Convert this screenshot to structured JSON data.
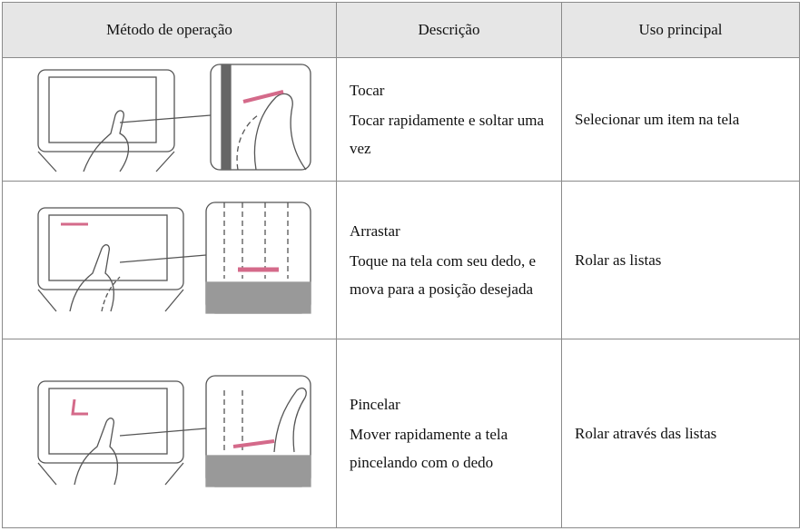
{
  "table": {
    "headers": [
      "Método de operação",
      "Descrição",
      "Uso principal"
    ],
    "rows": [
      {
        "action": "Tocar",
        "description": "Tocar rapidamente e soltar uma vez",
        "usage": "Selecionar um item na tela"
      },
      {
        "action": "Arrastar",
        "description": "Toque na tela com seu dedo, e mova para a posição desejada",
        "usage": "Rolar as listas"
      },
      {
        "action": "Pincelar",
        "description": "Mover rapidamente a tela pincelando com o dedo",
        "usage": "Rolar através das listas"
      }
    ]
  }
}
